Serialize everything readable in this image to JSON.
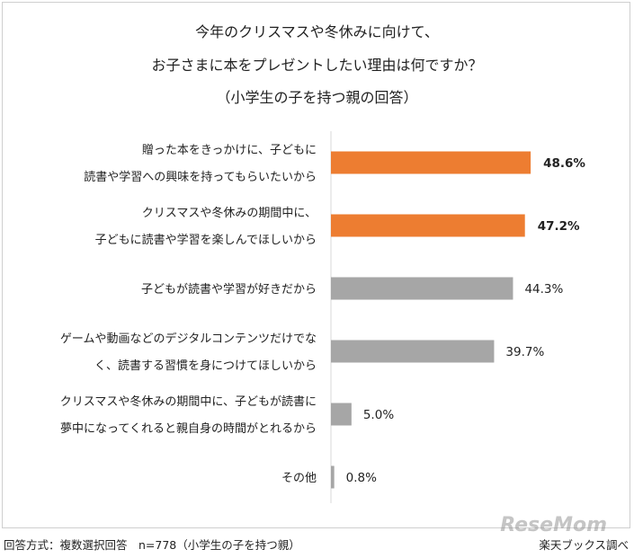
{
  "title": {
    "line1": "今年のクリスマスや冬休みに向けて、",
    "line2": "お子さまに本をプレゼントしたい理由は何ですか？",
    "line3": "（小学生の子を持つ親の回答）"
  },
  "footer": {
    "method": "回答方式：複数選択回答　n=778（小学生の子を持つ親）",
    "source": "楽天ブックス調べ"
  },
  "watermark": "ReseMom",
  "colors": {
    "highlight": "#ED7D31",
    "normal": "#A6A6A6",
    "axis": "#d9d9d9"
  },
  "chart_data": {
    "type": "bar",
    "orientation": "horizontal",
    "categories": [
      [
        "贈った本をきっかけに、子どもに",
        "読書や学習への興味を持ってもらいたいから"
      ],
      [
        "クリスマスや冬休みの期間中に、",
        "子どもに読書や学習を楽しんでほしいから"
      ],
      [
        "子どもが読書や学習が好きだから"
      ],
      [
        "ゲームや動画などのデジタルコンテンツだけでな",
        "く、読書する習慣を身につけてほしいから"
      ],
      [
        "クリスマスや冬休みの期間中に、子どもが読書に",
        "夢中になってくれると親自身の時間がとれるから"
      ],
      [
        "その他"
      ]
    ],
    "values": [
      48.6,
      47.2,
      44.3,
      39.7,
      5.0,
      0.8
    ],
    "value_labels": [
      "48.6%",
      "47.2%",
      "44.3%",
      "39.7%",
      "5.0%",
      "0.8%"
    ],
    "highlighted": [
      true,
      true,
      false,
      false,
      false,
      false
    ],
    "unit": "%",
    "xlim": [
      0,
      100
    ],
    "grid": false,
    "legend": "none"
  }
}
